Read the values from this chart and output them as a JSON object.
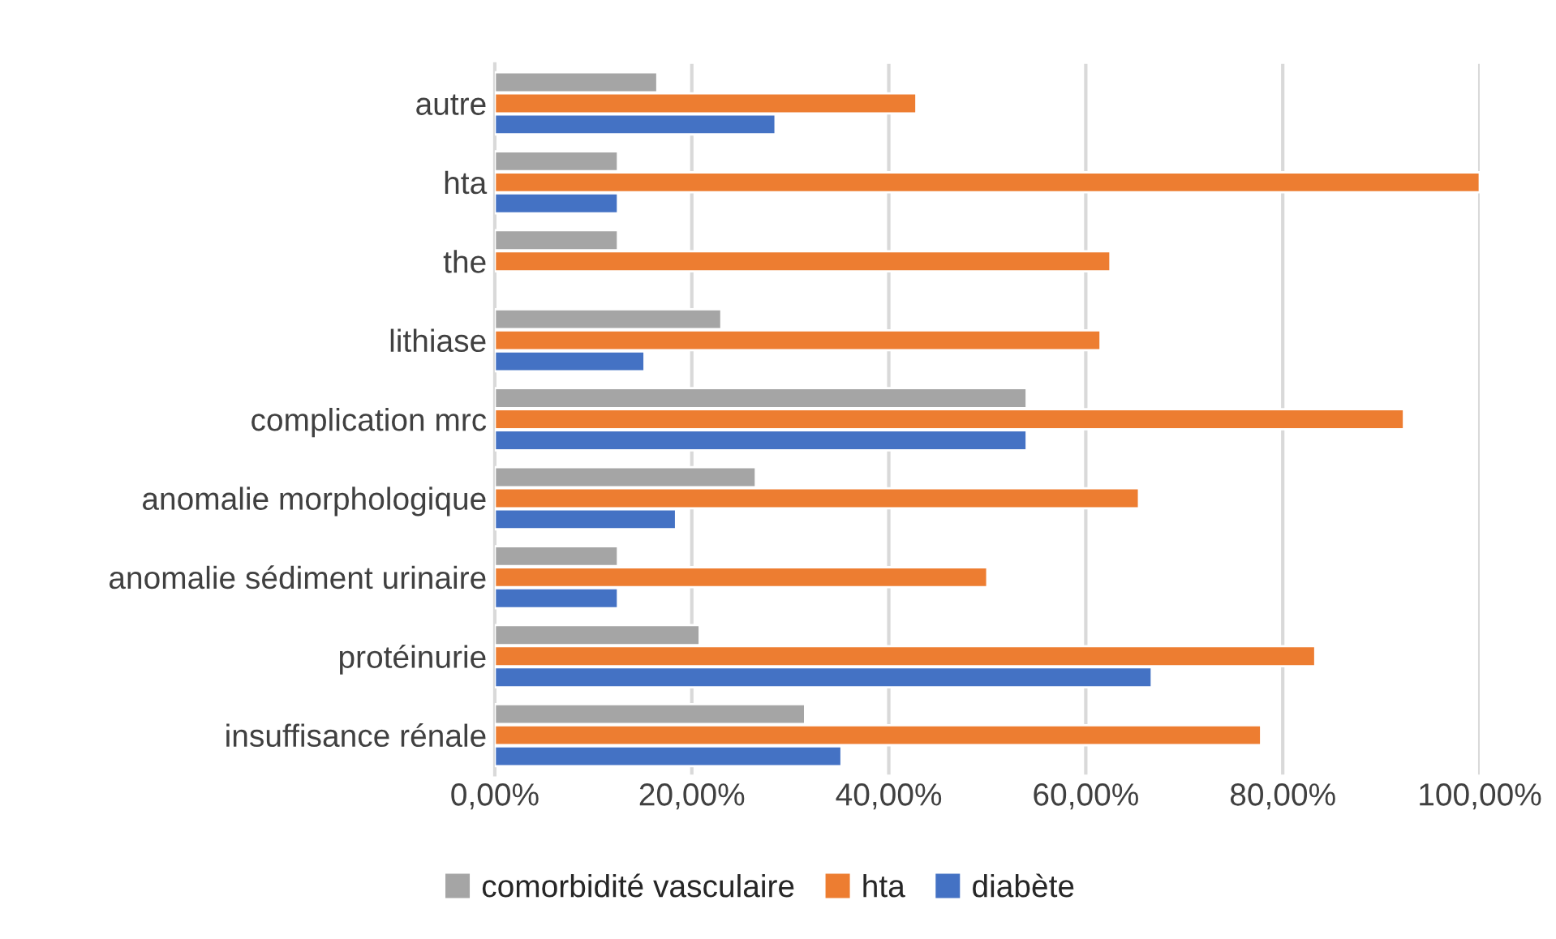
{
  "chart_data": {
    "type": "bar",
    "orientation": "horizontal",
    "categories": [
      "autre",
      "hta",
      "the",
      "lithiase",
      "complication mrc",
      "anomalie morphologique",
      "anomalie sédiment urinaire",
      "protéinurie",
      "insuffisance rénale"
    ],
    "series": [
      {
        "name": "comorbidité vasculaire",
        "color": "#a5a5a5",
        "values": [
          16.5,
          12.5,
          12.5,
          23,
          54,
          26.5,
          12.5,
          20.8,
          31.5
        ]
      },
      {
        "name": "hta",
        "color": "#ed7d31",
        "values": [
          42.8,
          100,
          62.5,
          61.5,
          92.3,
          65.4,
          50,
          83.3,
          77.8
        ]
      },
      {
        "name": "diabète",
        "color": "#4472c4",
        "values": [
          28.5,
          12.5,
          null,
          15.2,
          54,
          18.4,
          12.5,
          66.7,
          35.2
        ]
      }
    ],
    "xlim": [
      0,
      100
    ],
    "xticks": [
      {
        "value": 0,
        "label": "0,00%"
      },
      {
        "value": 20,
        "label": "20,00%"
      },
      {
        "value": 40,
        "label": "40,00%"
      },
      {
        "value": 60,
        "label": "60,00%"
      },
      {
        "value": 80,
        "label": "80,00%"
      },
      {
        "value": 100,
        "label": "100,00%"
      }
    ],
    "grid": "x",
    "legend": "bottom"
  }
}
